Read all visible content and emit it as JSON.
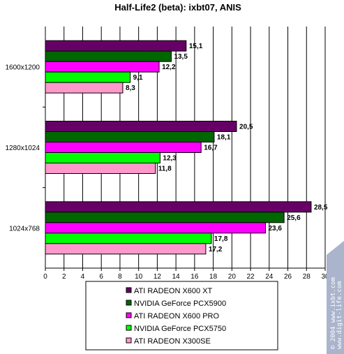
{
  "chart_data": {
    "type": "bar",
    "orientation": "horizontal",
    "title": "Half-Life2 (beta): ixbt07, ANIS",
    "categories": [
      "1600x1200",
      "1280x1024",
      "1024x768"
    ],
    "series": [
      {
        "name": "ATI  RADEON X600 XT",
        "color": "#660066",
        "values": [
          15.1,
          20.5,
          28.5
        ],
        "labels": [
          "15,1",
          "20,5",
          "28,5"
        ]
      },
      {
        "name": "NVIDIA GeForce PCX5900",
        "color": "#006600",
        "values": [
          13.5,
          18.1,
          25.6
        ],
        "labels": [
          "13,5",
          "18,1",
          "25,6"
        ]
      },
      {
        "name": "ATI RADEON X600 PRO",
        "color": "#ff00ff",
        "values": [
          12.2,
          16.7,
          23.6
        ],
        "labels": [
          "12,2",
          "16,7",
          "23,6"
        ]
      },
      {
        "name": "NVIDIA GeForce PCX5750",
        "color": "#00ff00",
        "values": [
          9.1,
          12.3,
          17.8
        ],
        "labels": [
          "9,1",
          "12,3",
          "17,8"
        ]
      },
      {
        "name": "ATI RADEON X300SE",
        "color": "#ff99cc",
        "values": [
          8.3,
          11.8,
          17.2
        ],
        "labels": [
          "8,3",
          "11,8",
          "17,2"
        ]
      }
    ],
    "xlim": [
      0,
      30
    ],
    "xticks": [
      0,
      2,
      4,
      6,
      8,
      10,
      12,
      14,
      16,
      18,
      20,
      22,
      24,
      26,
      28,
      30
    ],
    "grid": true,
    "legend_position": "bottom",
    "watermark_lines": [
      "© 2004 www.ixbt.com",
      "www.digit-life.com"
    ]
  }
}
